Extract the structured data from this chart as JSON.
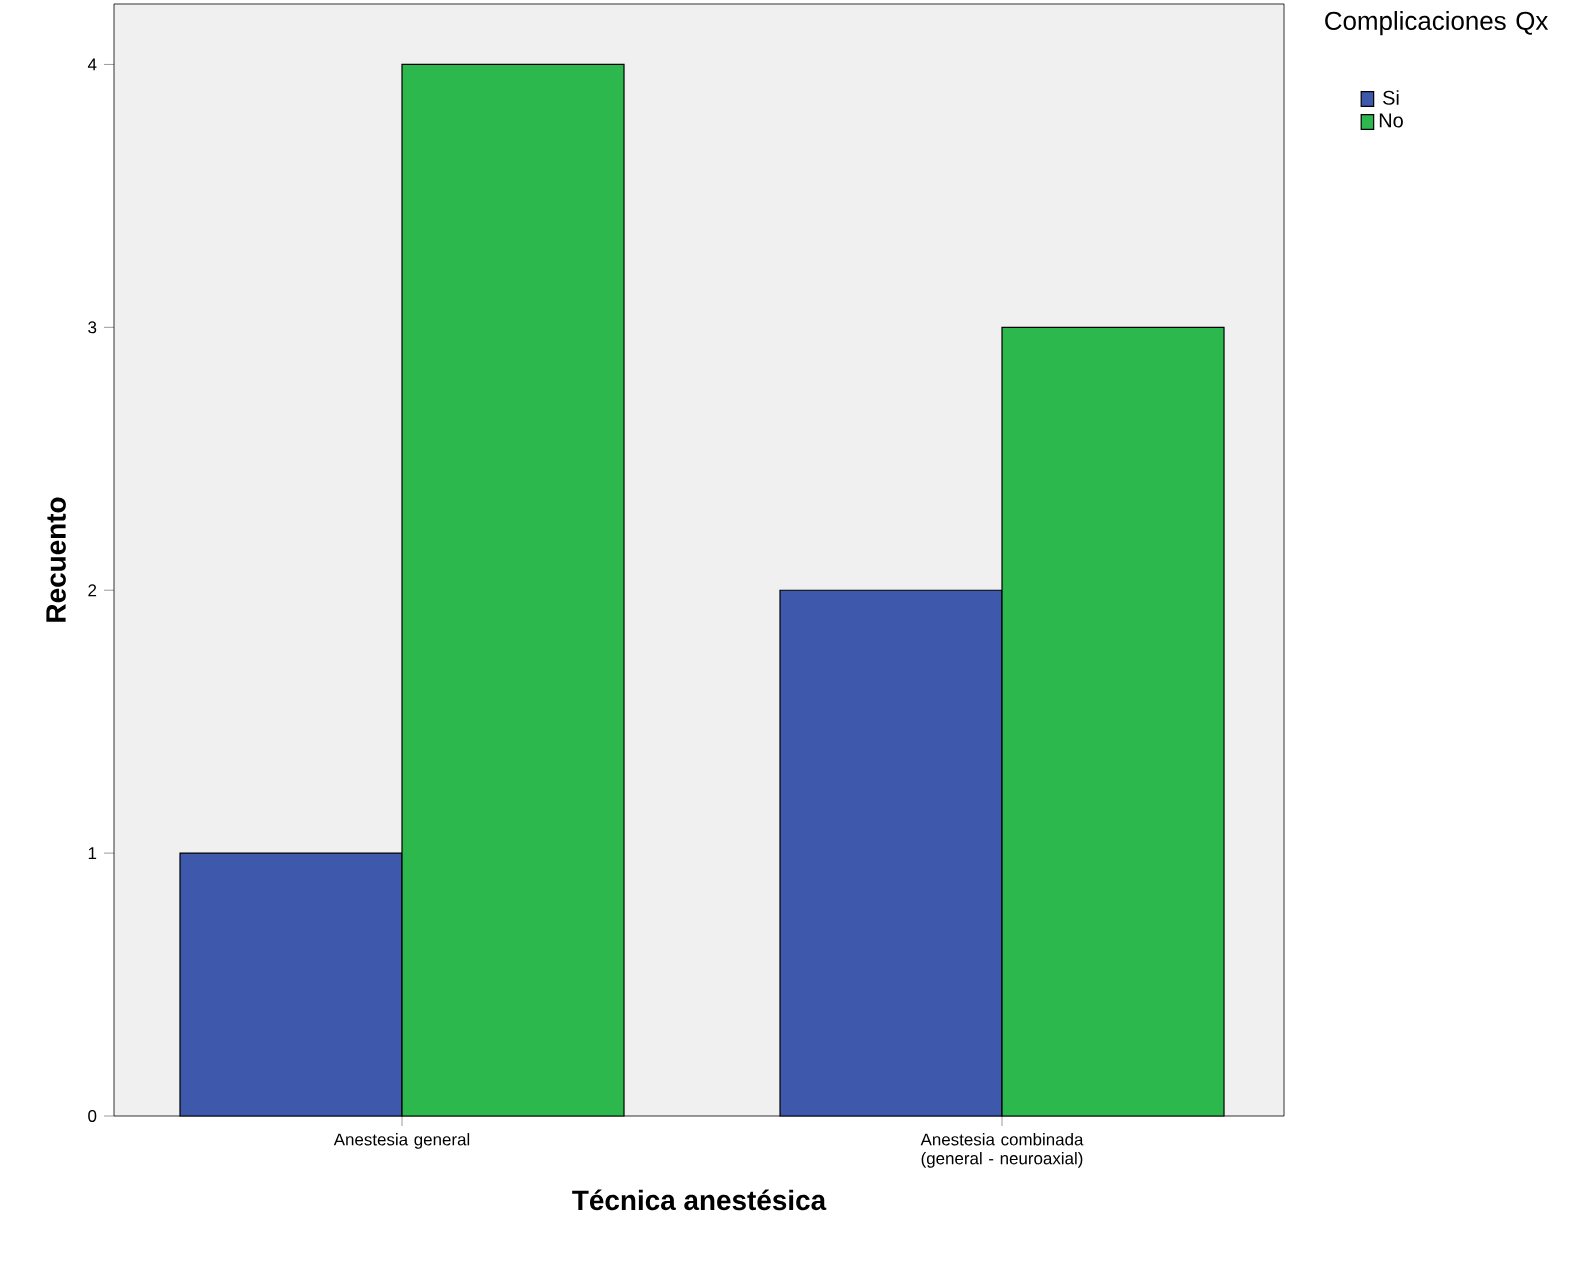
{
  "chart_data": {
    "type": "bar",
    "xlabel": "Técnica anestésica",
    "ylabel": "Recuento",
    "legend_title": "Complicaciones Qx",
    "categories": [
      "Anestesia general",
      "Anestesia combinada (general - neuroaxial)"
    ],
    "series": [
      {
        "name": "Si",
        "color": "#3e58ac",
        "values": [
          1,
          2
        ]
      },
      {
        "name": "No",
        "color": "#2db84d",
        "values": [
          4,
          3
        ]
      }
    ],
    "ylim": [
      0,
      4.23
    ],
    "yticks": [
      0,
      1,
      2,
      3,
      4
    ],
    "grid": false,
    "legend": "top right"
  }
}
